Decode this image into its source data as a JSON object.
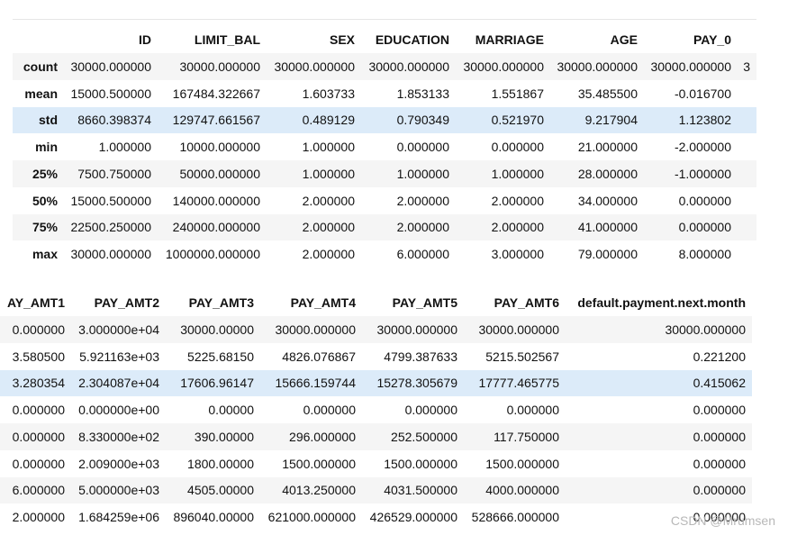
{
  "table1": {
    "columns": [
      "",
      "ID",
      "LIMIT_BAL",
      "SEX",
      "EDUCATION",
      "MARRIAGE",
      "AGE",
      "PAY_0",
      ""
    ],
    "rows": [
      [
        "count",
        "30000.000000",
        "30000.000000",
        "30000.000000",
        "30000.000000",
        "30000.000000",
        "30000.000000",
        "30000.000000",
        "3"
      ],
      [
        "mean",
        "15000.500000",
        "167484.322667",
        "1.603733",
        "1.853133",
        "1.551867",
        "35.485500",
        "-0.016700",
        ""
      ],
      [
        "std",
        "8660.398374",
        "129747.661567",
        "0.489129",
        "0.790349",
        "0.521970",
        "9.217904",
        "1.123802",
        ""
      ],
      [
        "min",
        "1.000000",
        "10000.000000",
        "1.000000",
        "0.000000",
        "0.000000",
        "21.000000",
        "-2.000000",
        ""
      ],
      [
        "25%",
        "7500.750000",
        "50000.000000",
        "1.000000",
        "1.000000",
        "1.000000",
        "28.000000",
        "-1.000000",
        ""
      ],
      [
        "50%",
        "15000.500000",
        "140000.000000",
        "2.000000",
        "2.000000",
        "2.000000",
        "34.000000",
        "0.000000",
        ""
      ],
      [
        "75%",
        "22500.250000",
        "240000.000000",
        "2.000000",
        "2.000000",
        "2.000000",
        "41.000000",
        "0.000000",
        ""
      ],
      [
        "max",
        "30000.000000",
        "1000000.000000",
        "2.000000",
        "6.000000",
        "3.000000",
        "79.000000",
        "8.000000",
        ""
      ]
    ]
  },
  "table2": {
    "columns": [
      "AY_AMT1",
      "PAY_AMT2",
      "PAY_AMT3",
      "PAY_AMT4",
      "PAY_AMT5",
      "PAY_AMT6",
      "default.payment.next.month"
    ],
    "rows": [
      [
        "0.000000",
        "3.000000e+04",
        "30000.00000",
        "30000.000000",
        "30000.000000",
        "30000.000000",
        "30000.000000"
      ],
      [
        "3.580500",
        "5.921163e+03",
        "5225.68150",
        "4826.076867",
        "4799.387633",
        "5215.502567",
        "0.221200"
      ],
      [
        "3.280354",
        "2.304087e+04",
        "17606.96147",
        "15666.159744",
        "15278.305679",
        "17777.465775",
        "0.415062"
      ],
      [
        "0.000000",
        "0.000000e+00",
        "0.00000",
        "0.000000",
        "0.000000",
        "0.000000",
        "0.000000"
      ],
      [
        "0.000000",
        "8.330000e+02",
        "390.00000",
        "296.000000",
        "252.500000",
        "117.750000",
        "0.000000"
      ],
      [
        "0.000000",
        "2.009000e+03",
        "1800.00000",
        "1500.000000",
        "1500.000000",
        "1500.000000",
        "0.000000"
      ],
      [
        "6.000000",
        "5.000000e+03",
        "4505.00000",
        "4013.250000",
        "4031.500000",
        "4000.000000",
        "0.000000"
      ],
      [
        "2.000000",
        "1.684259e+06",
        "896040.00000",
        "621000.000000",
        "426529.000000",
        "528666.000000",
        "0.000000"
      ]
    ]
  },
  "watermark": "CSDN @Mrumsen"
}
